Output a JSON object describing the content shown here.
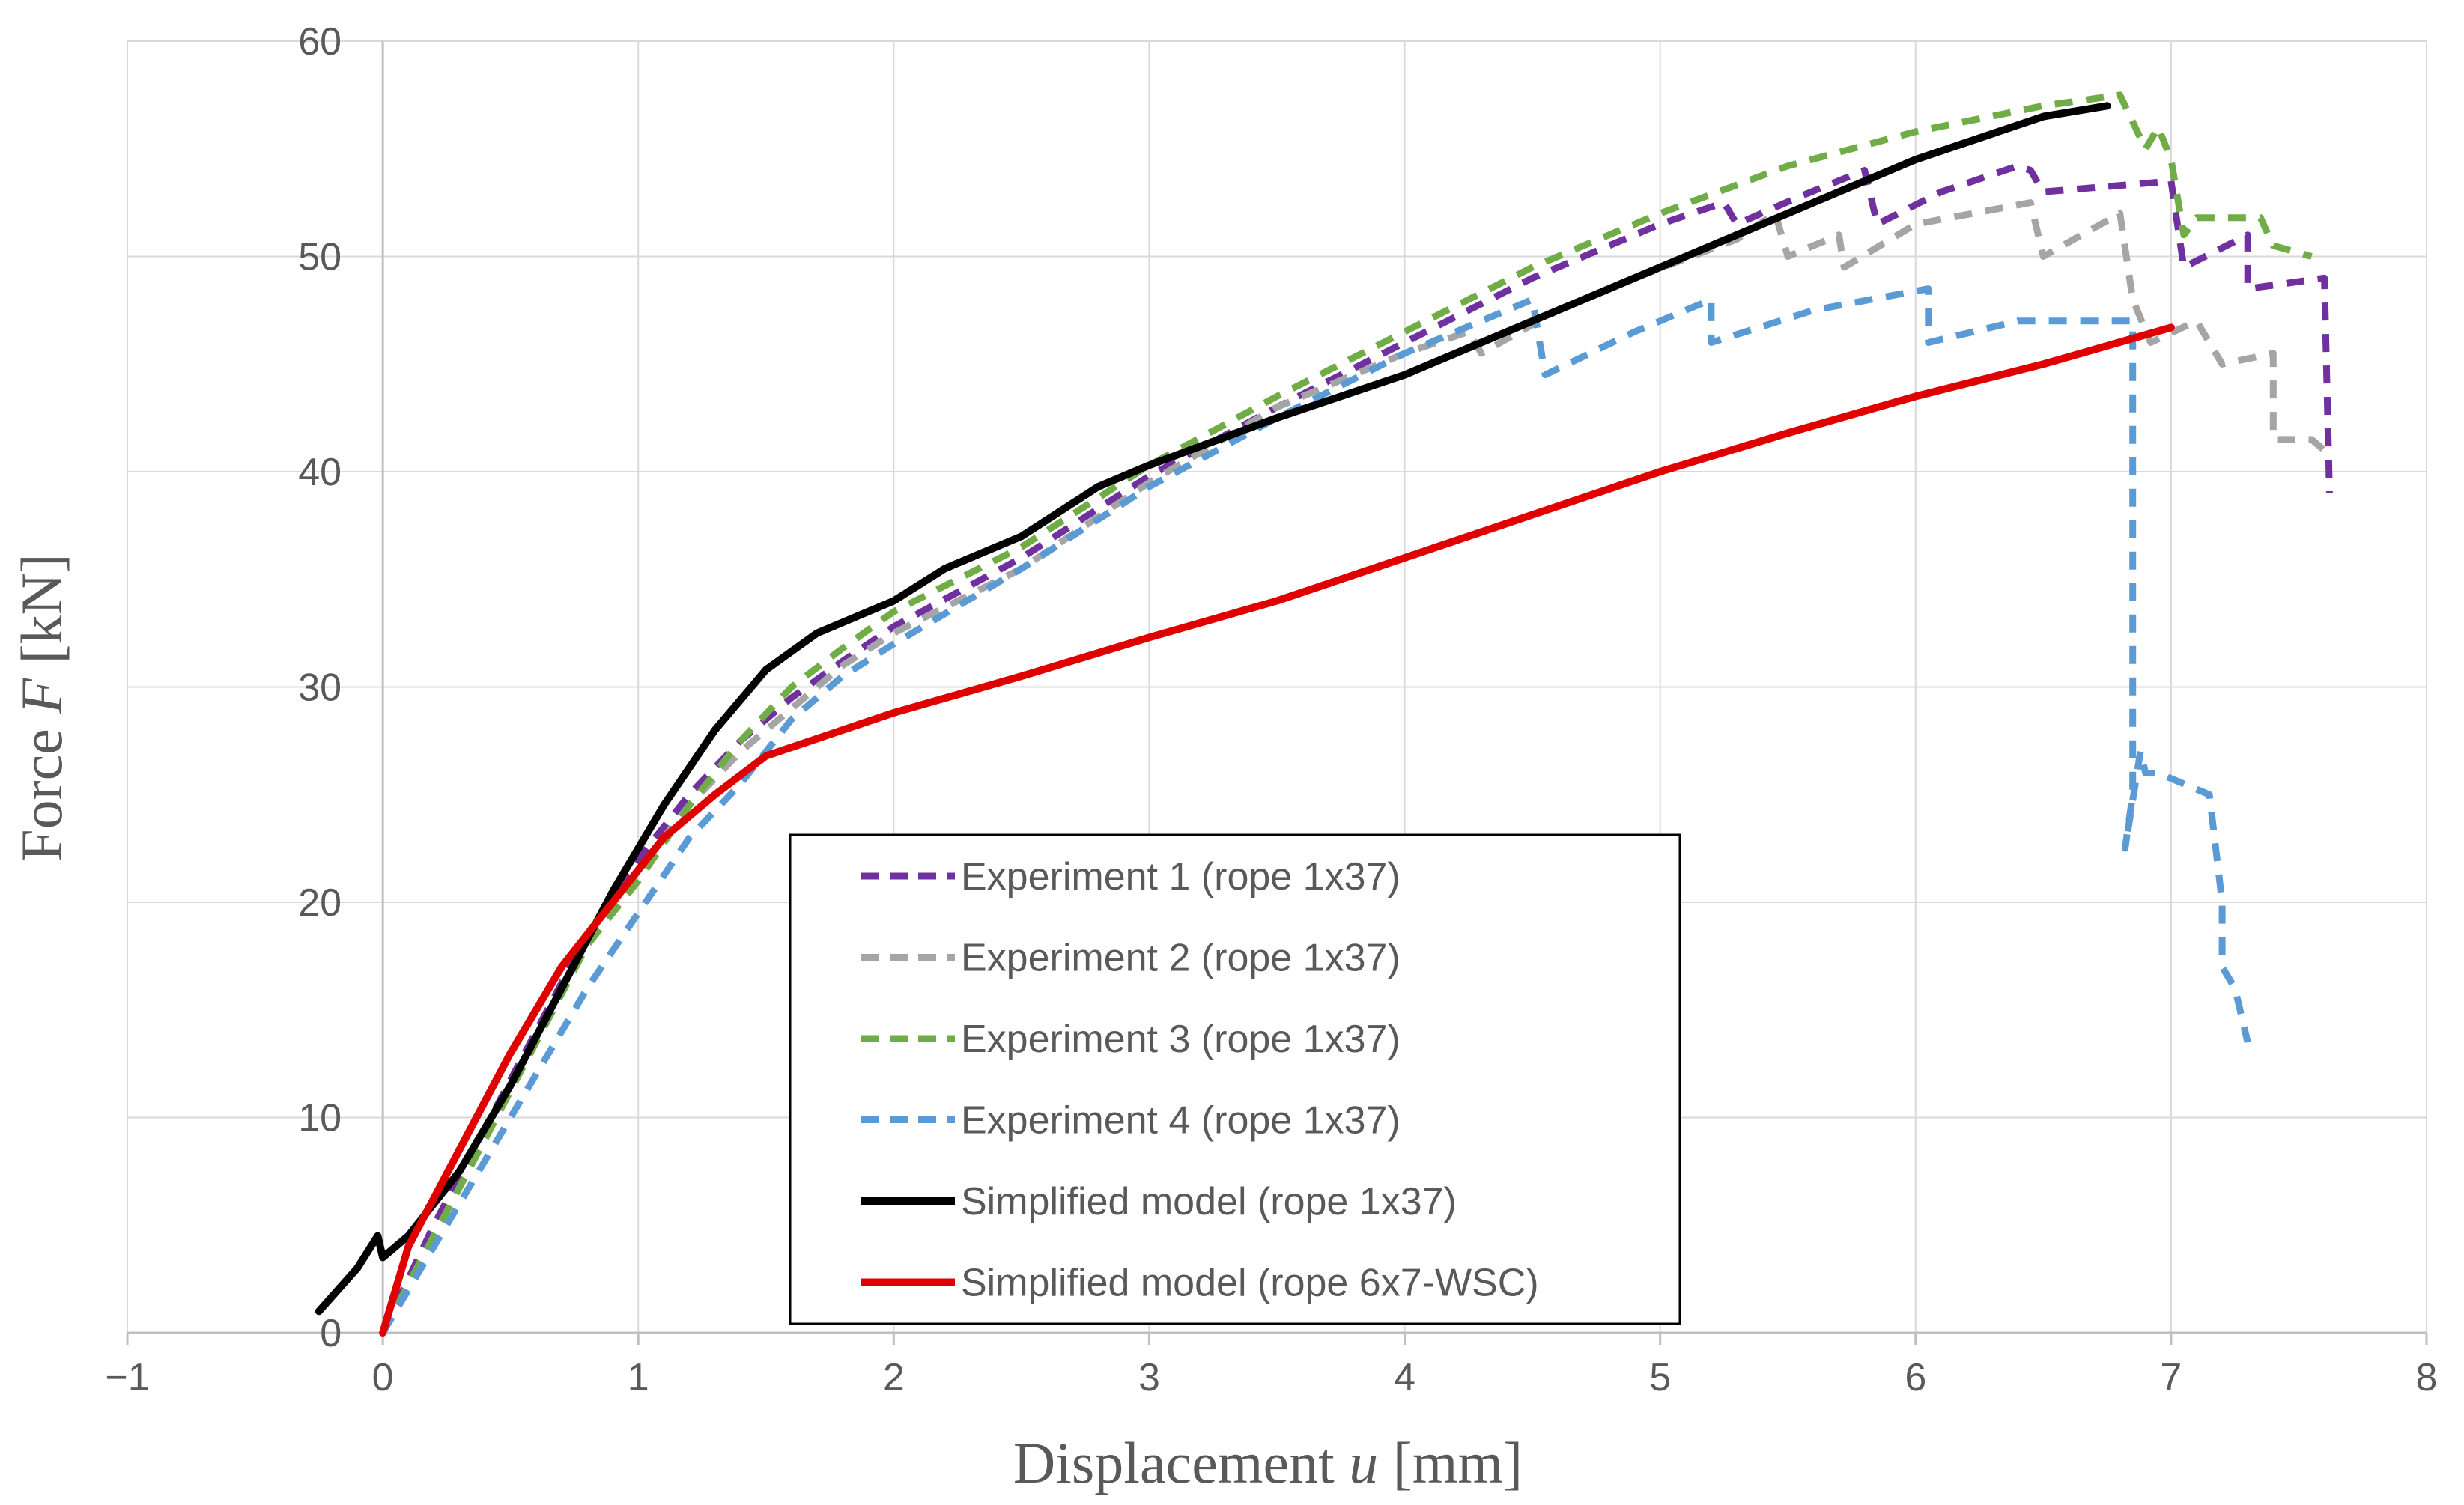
{
  "chart_data": {
    "type": "line",
    "title": "",
    "xlabel": {
      "prefix": "Displacement ",
      "var": "u",
      "suffix": " [mm]"
    },
    "ylabel": {
      "prefix": "Force ",
      "var": "F",
      "suffix": " [kN]"
    },
    "xlim": [
      -1,
      8
    ],
    "ylim": [
      0,
      60
    ],
    "xticks": [
      -1,
      0,
      1,
      2,
      3,
      4,
      5,
      6,
      7,
      8
    ],
    "xtick_labels": [
      "−1",
      "0",
      "1",
      "2",
      "3",
      "4",
      "5",
      "6",
      "7",
      "8"
    ],
    "yticks": [
      0,
      10,
      20,
      30,
      40,
      50,
      60
    ],
    "ytick_labels": [
      "0",
      "10",
      "20",
      "30",
      "40",
      "50",
      "60"
    ],
    "grid": true,
    "legend_position": "bottom-center",
    "series": [
      {
        "name": "Experiment 1 (rope 1x37)",
        "color": "#7030A0",
        "style": "dashed",
        "x": [
          0,
          0.2,
          0.4,
          0.6,
          0.8,
          1.0,
          1.2,
          1.4,
          1.6,
          1.8,
          2.0,
          2.5,
          3.0,
          3.5,
          4.0,
          4.5,
          5.0,
          5.25,
          5.3,
          5.55,
          5.8,
          5.85,
          6.1,
          6.4,
          6.45,
          6.5,
          7.0,
          7.05,
          7.3,
          7.3,
          7.6,
          7.62
        ],
        "y": [
          0,
          5,
          9.5,
          14,
          18.5,
          22,
          25,
          27.5,
          29.5,
          31.2,
          32.8,
          36,
          39.8,
          43,
          46,
          49,
          51.5,
          52.5,
          51.5,
          52.8,
          54,
          51.5,
          53,
          54.2,
          54,
          53,
          53.5,
          49.5,
          51,
          48.5,
          49,
          39
        ]
      },
      {
        "name": "Experiment 2 (rope 1x37)",
        "color": "#A5A5A5",
        "style": "dashed",
        "x": [
          0,
          0.2,
          0.4,
          0.6,
          0.8,
          1.0,
          1.2,
          1.4,
          1.6,
          1.8,
          2.0,
          2.5,
          3.0,
          3.5,
          4.0,
          4.25,
          4.3,
          4.6,
          4.9,
          5.3,
          5.45,
          5.5,
          5.7,
          5.72,
          6.0,
          6.45,
          6.5,
          6.8,
          6.85,
          6.92,
          7.1,
          7.2,
          7.4,
          7.4,
          7.55,
          7.6
        ],
        "y": [
          0,
          4.5,
          9,
          13.5,
          18,
          21.5,
          24.5,
          27,
          29,
          31,
          32.5,
          35.5,
          39.5,
          43,
          45.5,
          46.5,
          45.5,
          47.5,
          49,
          50.8,
          52,
          50,
          51,
          49.5,
          51.5,
          52.5,
          50,
          52,
          48,
          46,
          47,
          45,
          45.5,
          41.5,
          41.5,
          41
        ]
      },
      {
        "name": "Experiment 3 (rope 1x37)",
        "color": "#70AD47",
        "style": "dashed",
        "x": [
          0,
          0.2,
          0.4,
          0.6,
          0.8,
          1.0,
          1.2,
          1.4,
          1.6,
          1.8,
          2.0,
          2.5,
          3.0,
          3.5,
          4.0,
          4.5,
          5.0,
          5.5,
          6.0,
          6.5,
          6.8,
          6.9,
          6.95,
          7.0,
          7.05,
          7.1,
          7.35,
          7.4,
          7.55
        ],
        "y": [
          0,
          4.5,
          9,
          13.5,
          18,
          21,
          24.5,
          27.5,
          30,
          31.8,
          33.5,
          36.5,
          40.3,
          43.5,
          46.5,
          49.5,
          52,
          54.2,
          55.8,
          57,
          57.5,
          55,
          56,
          54.5,
          51,
          51.8,
          51.8,
          50.5,
          50
        ]
      },
      {
        "name": "Experiment 4 (rope 1x37)",
        "color": "#5B9BD5",
        "style": "dashed",
        "x": [
          0,
          0.2,
          0.4,
          0.6,
          0.8,
          1.0,
          1.2,
          1.4,
          1.6,
          1.8,
          2.0,
          2.5,
          3.0,
          3.5,
          4.0,
          4.5,
          4.55,
          4.9,
          5.2,
          5.2,
          5.6,
          6.05,
          6.05,
          6.4,
          6.85,
          6.85,
          6.82,
          6.88,
          6.9,
          6.95,
          7.15,
          7.2,
          7.2,
          7.25,
          7.3
        ],
        "y": [
          0,
          4,
          8,
          12,
          16,
          19.5,
          23,
          25.5,
          28.5,
          30.5,
          32,
          35.5,
          39.3,
          42.5,
          45.5,
          48,
          44.5,
          46.5,
          48,
          46,
          47.5,
          48.5,
          46,
          47,
          47,
          25,
          22.5,
          27,
          26,
          26,
          25,
          20,
          17,
          16,
          13.5
        ]
      },
      {
        "name": "Simplified model (rope 1x37)",
        "color": "#000000",
        "style": "solid",
        "x": [
          -0.25,
          -0.1,
          -0.02,
          0,
          0.1,
          0.3,
          0.5,
          0.7,
          0.9,
          1.1,
          1.3,
          1.5,
          1.7,
          2.0,
          2.2,
          2.5,
          2.8,
          3.0,
          3.5,
          4.0,
          4.5,
          5.0,
          5.5,
          6.0,
          6.5,
          6.75
        ],
        "y": [
          1,
          3,
          4.5,
          3.5,
          4.5,
          7.5,
          11.5,
          16,
          20.5,
          24.5,
          28,
          30.8,
          32.5,
          34,
          35.5,
          37,
          39.3,
          40.3,
          42.5,
          44.5,
          47,
          49.5,
          52,
          54.5,
          56.5,
          57
        ]
      },
      {
        "name": "Simplified model (rope 6x7-WSC)",
        "color": "#E00000",
        "style": "solid",
        "x": [
          0,
          0.1,
          0.3,
          0.5,
          0.7,
          0.9,
          1.1,
          1.3,
          1.5,
          2.0,
          2.5,
          3.0,
          3.5,
          4.0,
          4.5,
          5.0,
          5.5,
          6.0,
          6.5,
          7.0
        ],
        "y": [
          0,
          4,
          8.5,
          13,
          17,
          20,
          23,
          25,
          26.8,
          28.8,
          30.5,
          32.3,
          34,
          36,
          38,
          40,
          41.8,
          43.5,
          45,
          46.7
        ]
      }
    ]
  }
}
